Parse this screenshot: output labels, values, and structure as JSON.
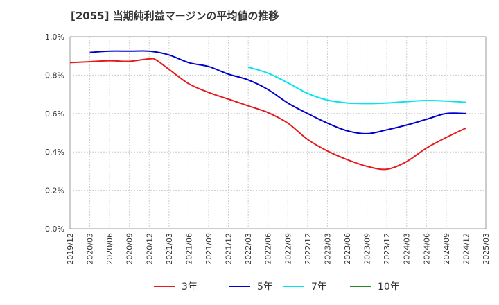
{
  "chart_data": {
    "type": "line",
    "title": "[2055]  当期純利益マージンの平均値の推移",
    "xlabel": "",
    "ylabel": "",
    "ylim": [
      0,
      1.0
    ],
    "y_ticks": [
      "0.0%",
      "0.2%",
      "0.4%",
      "0.6%",
      "0.8%",
      "1.0%"
    ],
    "y_tick_values": [
      0,
      0.2,
      0.4,
      0.6,
      0.8,
      1.0
    ],
    "x_ticks": [
      "2019/12",
      "2020/03",
      "2020/06",
      "2020/09",
      "2020/12",
      "2021/03",
      "2021/06",
      "2021/09",
      "2021/12",
      "2022/03",
      "2022/06",
      "2022/09",
      "2022/12",
      "2023/03",
      "2023/06",
      "2023/09",
      "2023/12",
      "2024/03",
      "2024/06",
      "2024/09",
      "2024/12",
      "2025/03"
    ],
    "grid": true,
    "legend_position": "bottom",
    "series": [
      {
        "name": "3年",
        "color": "#e41a1c",
        "x": [
          "2019/12",
          "2020/03",
          "2020/06",
          "2020/09",
          "2020/12",
          "2021/01",
          "2021/03",
          "2021/06",
          "2021/09",
          "2021/12",
          "2022/03",
          "2022/06",
          "2022/09",
          "2022/12",
          "2023/03",
          "2023/06",
          "2023/09",
          "2023/12",
          "2024/03",
          "2024/06",
          "2024/09",
          "2024/12"
        ],
        "values": [
          0.865,
          0.87,
          0.875,
          0.872,
          0.885,
          0.88,
          0.83,
          0.755,
          0.71,
          0.675,
          0.64,
          0.605,
          0.55,
          0.465,
          0.405,
          0.36,
          0.325,
          0.31,
          0.35,
          0.42,
          0.475,
          0.525
        ]
      },
      {
        "name": "5年",
        "color": "#0000cc",
        "x": [
          "2020/03",
          "2020/06",
          "2020/09",
          "2020/12",
          "2021/03",
          "2021/06",
          "2021/09",
          "2021/12",
          "2022/03",
          "2022/06",
          "2022/09",
          "2022/12",
          "2023/03",
          "2023/06",
          "2023/09",
          "2023/12",
          "2024/03",
          "2024/06",
          "2024/09",
          "2024/12"
        ],
        "values": [
          0.918,
          0.925,
          0.925,
          0.925,
          0.905,
          0.865,
          0.845,
          0.805,
          0.775,
          0.725,
          0.655,
          0.6,
          0.55,
          0.51,
          0.495,
          0.515,
          0.54,
          0.57,
          0.6,
          0.6
        ]
      },
      {
        "name": "7年",
        "color": "#00e5ee",
        "x": [
          "2022/03",
          "2022/06",
          "2022/09",
          "2022/12",
          "2023/03",
          "2023/06",
          "2023/09",
          "2023/12",
          "2024/03",
          "2024/06",
          "2024/09",
          "2024/12"
        ],
        "values": [
          0.842,
          0.81,
          0.76,
          0.705,
          0.67,
          0.655,
          0.652,
          0.655,
          0.662,
          0.668,
          0.665,
          0.658
        ]
      },
      {
        "name": "10年",
        "color": "#228b22",
        "x": [],
        "values": []
      }
    ]
  }
}
